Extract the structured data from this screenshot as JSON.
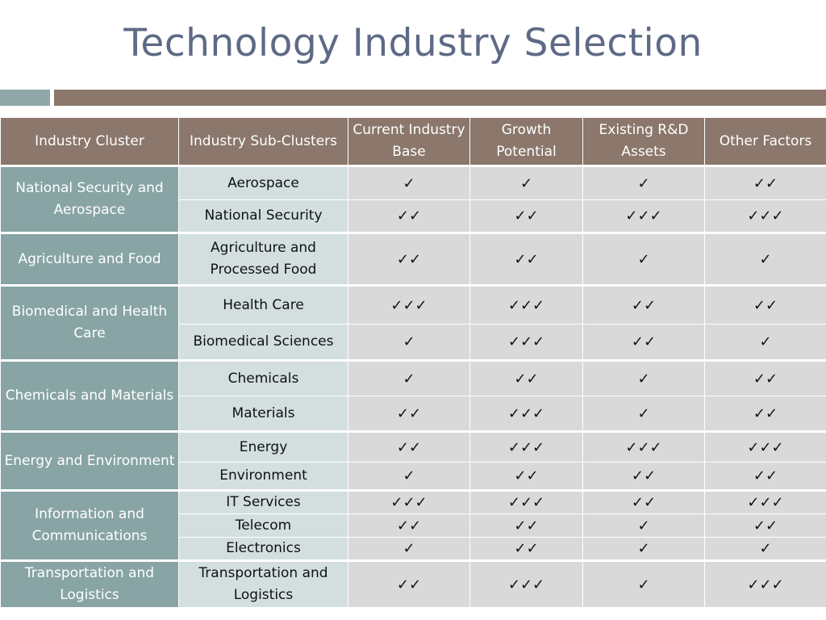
{
  "title": "Technology Industry Selection",
  "table": {
    "headers": [
      "Industry Cluster",
      "Industry Sub-Clusters",
      "Current Industry Base",
      "Growth Potential",
      "Existing R&D Assets",
      "Other Factors"
    ],
    "groups": [
      {
        "cluster": "National Security and Aerospace",
        "rows": [
          {
            "sub": "Aerospace",
            "marks": [
              "✓",
              "✓",
              "✓",
              "✓✓"
            ]
          },
          {
            "sub": "National Security",
            "marks": [
              "✓✓",
              "✓✓",
              "✓✓✓",
              "✓✓✓"
            ]
          }
        ]
      },
      {
        "cluster": "Agriculture and Food",
        "rows": [
          {
            "sub": "Agriculture and Processed Food",
            "marks": [
              "✓✓",
              "✓✓",
              "✓",
              "✓"
            ]
          }
        ]
      },
      {
        "cluster": "Biomedical and Health Care",
        "rows": [
          {
            "sub": "Health Care",
            "marks": [
              "✓✓✓",
              "✓✓✓",
              "✓✓",
              "✓✓"
            ]
          },
          {
            "sub": "Biomedical Sciences",
            "marks": [
              "✓",
              "✓✓✓",
              "✓✓",
              "✓"
            ]
          }
        ]
      },
      {
        "cluster": "Chemicals and Materials",
        "rows": [
          {
            "sub": "Chemicals",
            "marks": [
              "✓",
              "✓✓",
              "✓",
              "✓✓"
            ]
          },
          {
            "sub": "Materials",
            "marks": [
              "✓✓",
              "✓✓✓",
              "✓",
              "✓✓"
            ]
          }
        ]
      },
      {
        "cluster": "Energy and Environment",
        "rows": [
          {
            "sub": "Energy",
            "marks": [
              "✓✓",
              "✓✓✓",
              "✓✓✓",
              "✓✓✓"
            ]
          },
          {
            "sub": "Environment",
            "marks": [
              "✓",
              "✓✓",
              "✓✓",
              "✓✓"
            ]
          }
        ]
      },
      {
        "cluster": "Information and Communications",
        "rows": [
          {
            "sub": "IT Services",
            "marks": [
              "✓✓✓",
              "✓✓✓",
              "✓✓",
              "✓✓✓"
            ]
          },
          {
            "sub": "Telecom",
            "marks": [
              "✓✓",
              "✓✓",
              "✓",
              "✓✓"
            ]
          },
          {
            "sub": "Electronics",
            "marks": [
              "✓",
              "✓✓",
              "✓",
              "✓"
            ]
          }
        ]
      },
      {
        "cluster": "Transportation and Logistics",
        "rows": [
          {
            "sub": "Transportation and Logistics",
            "marks": [
              "✓✓",
              "✓✓✓",
              "✓",
              "✓✓✓"
            ]
          }
        ]
      }
    ]
  },
  "colors": {
    "title": "#5e6a85",
    "header_bg": "#8b776b",
    "accent_bar": "#8fa7a6",
    "cluster_bg": "#88a4a4",
    "sub_bg": "#d3dfdf",
    "cell_bg": "#d9d9d9"
  }
}
